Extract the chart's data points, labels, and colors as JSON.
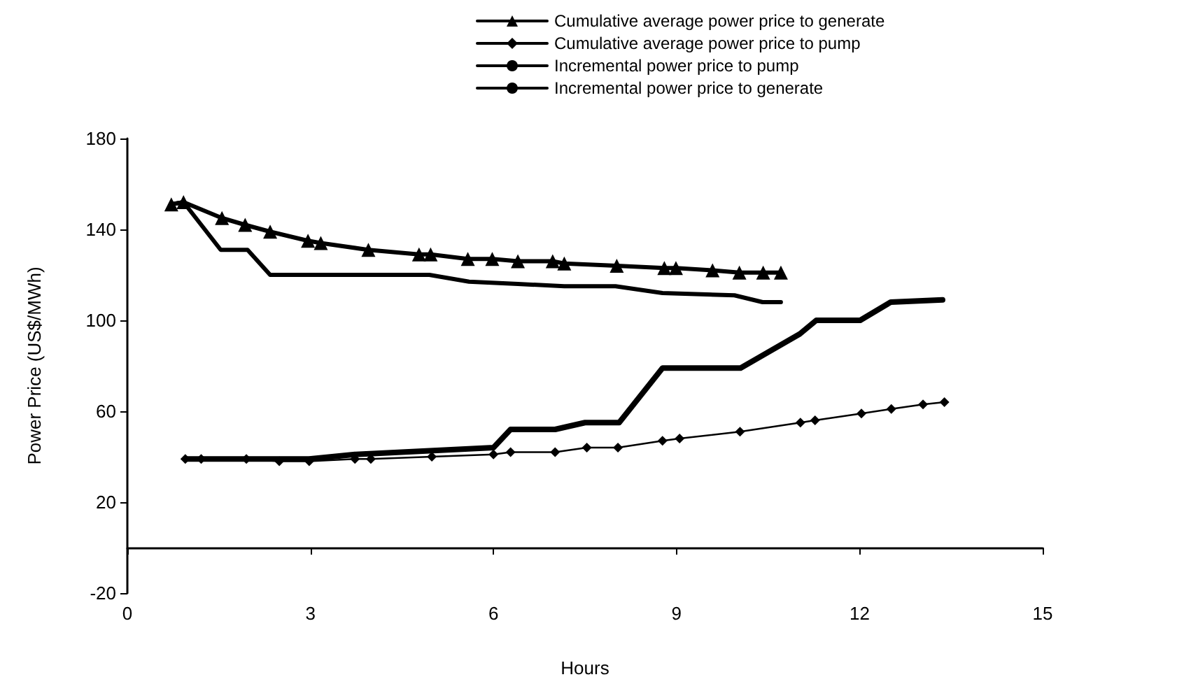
{
  "chart_data": {
    "type": "line",
    "xlabel": "Hours",
    "ylabel": "Power Price (US$/MWh)",
    "xlim": [
      0,
      15
    ],
    "xticks": [
      0,
      3,
      6,
      9,
      12,
      15
    ],
    "ylim": [
      -20,
      180
    ],
    "yticks": [
      -20,
      20,
      60,
      100,
      140,
      180
    ],
    "grid": false,
    "legend": "top right",
    "line_style": "solid",
    "series": [
      {
        "name": "Cumulative average power price to generate",
        "color": "#000000",
        "marker": "triangle",
        "x": [
          0.72,
          0.92,
          1.55,
          1.93,
          2.34,
          2.96,
          3.17,
          3.95,
          4.78,
          4.97,
          5.58,
          5.98,
          6.4,
          6.97,
          7.16,
          8.02,
          8.8,
          8.99,
          9.59,
          10.03,
          10.42,
          10.71
        ],
        "values": [
          151,
          152,
          145,
          142,
          139,
          135,
          134,
          131,
          129,
          129,
          127,
          127,
          126,
          126,
          125,
          124,
          123,
          123,
          122,
          121,
          121,
          121
        ]
      },
      {
        "name": "Cumulative average power price to pump",
        "color": "#000000",
        "marker": "diamond",
        "x": [
          0.95,
          1.21,
          1.95,
          2.49,
          2.98,
          3.73,
          3.99,
          4.99,
          6.0,
          6.28,
          7.01,
          7.53,
          8.04,
          8.77,
          9.05,
          10.04,
          11.03,
          11.27,
          12.03,
          12.52,
          13.04,
          13.39
        ],
        "values": [
          39,
          39,
          39,
          38,
          38,
          39,
          39,
          40,
          41,
          42,
          42,
          44,
          44,
          47,
          48,
          51,
          55,
          56,
          59,
          61,
          63,
          64
        ]
      },
      {
        "name": "Incremental power price to pump",
        "color": "#000000",
        "marker": "none",
        "x": [
          0.95,
          2.98,
          3.73,
          6.0,
          6.28,
          7.01,
          7.5,
          8.06,
          8.77,
          10.05,
          11.02,
          11.29,
          12.01,
          12.51,
          13.36
        ],
        "values": [
          39,
          39,
          41,
          44,
          52,
          52,
          55,
          55,
          79,
          79,
          94,
          100,
          100,
          108,
          109
        ]
      },
      {
        "name": "Incremental power price to generate",
        "color": "#000000",
        "marker": "none",
        "x": [
          0.72,
          0.92,
          1.53,
          1.97,
          2.34,
          4.95,
          5.6,
          6.4,
          7.16,
          8.0,
          8.77,
          9.95,
          10.41,
          10.71
        ],
        "values": [
          151,
          152,
          131,
          131,
          120,
          120,
          117,
          116,
          115,
          115,
          112,
          111,
          108,
          108
        ]
      }
    ]
  }
}
